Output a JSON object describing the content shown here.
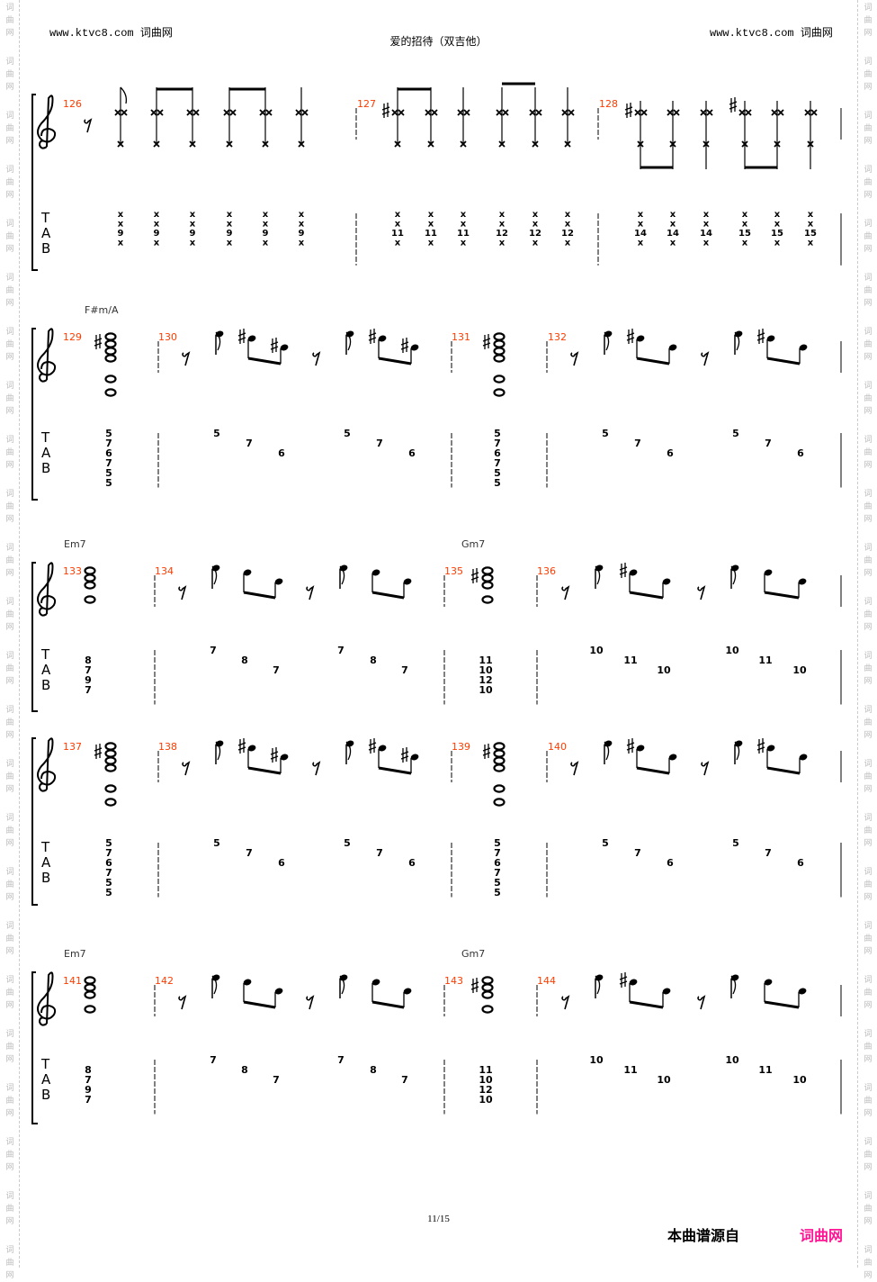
{
  "header": {
    "left": "www.ktvc8.com 词曲网",
    "right": "www.ktvc8.com 词曲网",
    "title": "爱的招待（双吉他）"
  },
  "watermark": "词曲网",
  "footer": {
    "page": "11/15",
    "source_label": "本曲谱源自",
    "source_site": "词曲网"
  },
  "colors": {
    "measure_number": "#ff3c00",
    "brand": "#ff1493",
    "text": "#000000"
  },
  "tab_clef": [
    "T",
    "A",
    "B"
  ],
  "systems": [
    {
      "measures": [
        {
          "number": "126",
          "columns": [
            {
              "string": 1,
              "frets": [
                "x",
                "x",
                "9",
                "x"
              ]
            },
            {
              "string": 1,
              "frets": [
                "x",
                "x",
                "9",
                "x"
              ]
            },
            {
              "string": 1,
              "frets": [
                "x",
                "x",
                "9",
                "x"
              ]
            },
            {
              "string": 1,
              "frets": [
                "x",
                "x",
                "9",
                "x"
              ]
            },
            {
              "string": 1,
              "frets": [
                "x",
                "x",
                "9",
                "x"
              ]
            },
            {
              "string": 1,
              "frets": [
                "x",
                "x",
                "9",
                "x"
              ]
            }
          ]
        },
        {
          "number": "127",
          "columns": [
            {
              "string": 1,
              "frets": [
                "x",
                "x",
                "11",
                "x"
              ]
            },
            {
              "string": 1,
              "frets": [
                "x",
                "x",
                "11",
                "x"
              ]
            },
            {
              "string": 1,
              "frets": [
                "x",
                "x",
                "11",
                "x"
              ]
            },
            {
              "string": 1,
              "frets": [
                "x",
                "x",
                "12",
                "x"
              ]
            },
            {
              "string": 1,
              "frets": [
                "x",
                "x",
                "12",
                "x"
              ]
            },
            {
              "string": 1,
              "frets": [
                "x",
                "x",
                "12",
                "x"
              ]
            }
          ]
        },
        {
          "number": "128",
          "columns": [
            {
              "string": 1,
              "frets": [
                "x",
                "x",
                "14",
                "x"
              ]
            },
            {
              "string": 1,
              "frets": [
                "x",
                "x",
                "14",
                "x"
              ]
            },
            {
              "string": 1,
              "frets": [
                "x",
                "x",
                "14",
                "x"
              ]
            },
            {
              "string": 1,
              "frets": [
                "x",
                "x",
                "15",
                "x"
              ]
            },
            {
              "string": 1,
              "frets": [
                "x",
                "x",
                "15",
                "x"
              ]
            },
            {
              "string": 1,
              "frets": [
                "x",
                "x",
                "15",
                "x"
              ]
            }
          ]
        }
      ]
    },
    {
      "measures": [
        {
          "number": "129",
          "chord": "F#m/A",
          "columns": [
            {
              "string": 1,
              "frets": [
                "5",
                "7",
                "6",
                "7",
                "5",
                "5"
              ]
            }
          ]
        },
        {
          "number": "130",
          "columns": [
            {
              "string": 1,
              "frets": [
                "5"
              ]
            },
            {
              "string": 2,
              "frets": [
                "7"
              ]
            },
            {
              "string": 3,
              "frets": [
                "6"
              ]
            },
            {
              "string": 1,
              "frets": [
                "5"
              ]
            },
            {
              "string": 2,
              "frets": [
                "7"
              ]
            },
            {
              "string": 3,
              "frets": [
                "6"
              ]
            }
          ]
        },
        {
          "number": "131",
          "columns": [
            {
              "string": 1,
              "frets": [
                "5",
                "7",
                "6",
                "7",
                "5",
                "5"
              ]
            }
          ]
        },
        {
          "number": "132",
          "columns": [
            {
              "string": 1,
              "frets": [
                "5"
              ]
            },
            {
              "string": 2,
              "frets": [
                "7"
              ]
            },
            {
              "string": 3,
              "frets": [
                "6"
              ]
            },
            {
              "string": 1,
              "frets": [
                "5"
              ]
            },
            {
              "string": 2,
              "frets": [
                "7"
              ]
            },
            {
              "string": 3,
              "frets": [
                "6"
              ]
            }
          ]
        }
      ]
    },
    {
      "measures": [
        {
          "number": "133",
          "chord": "Em7",
          "columns": [
            {
              "string": 2,
              "frets": [
                "8",
                "7",
                "9",
                "7"
              ]
            }
          ]
        },
        {
          "number": "134",
          "columns": [
            {
              "string": 1,
              "frets": [
                "7"
              ]
            },
            {
              "string": 2,
              "frets": [
                "8"
              ]
            },
            {
              "string": 3,
              "frets": [
                "7"
              ]
            },
            {
              "string": 1,
              "frets": [
                "7"
              ]
            },
            {
              "string": 2,
              "frets": [
                "8"
              ]
            },
            {
              "string": 3,
              "frets": [
                "7"
              ]
            }
          ]
        },
        {
          "number": "135",
          "chord": "Gm7",
          "columns": [
            {
              "string": 2,
              "frets": [
                "11",
                "10",
                "12",
                "10"
              ]
            }
          ]
        },
        {
          "number": "136",
          "columns": [
            {
              "string": 1,
              "frets": [
                "10"
              ]
            },
            {
              "string": 2,
              "frets": [
                "11"
              ]
            },
            {
              "string": 3,
              "frets": [
                "10"
              ]
            },
            {
              "string": 1,
              "frets": [
                "10"
              ]
            },
            {
              "string": 2,
              "frets": [
                "11"
              ]
            },
            {
              "string": 3,
              "frets": [
                "10"
              ]
            }
          ]
        }
      ]
    },
    {
      "measures": [
        {
          "number": "137",
          "columns": [
            {
              "string": 1,
              "frets": [
                "5",
                "7",
                "6",
                "7",
                "5",
                "5"
              ]
            }
          ]
        },
        {
          "number": "138",
          "columns": [
            {
              "string": 1,
              "frets": [
                "5"
              ]
            },
            {
              "string": 2,
              "frets": [
                "7"
              ]
            },
            {
              "string": 3,
              "frets": [
                "6"
              ]
            },
            {
              "string": 1,
              "frets": [
                "5"
              ]
            },
            {
              "string": 2,
              "frets": [
                "7"
              ]
            },
            {
              "string": 3,
              "frets": [
                "6"
              ]
            }
          ]
        },
        {
          "number": "139",
          "columns": [
            {
              "string": 1,
              "frets": [
                "5",
                "7",
                "6",
                "7",
                "5",
                "5"
              ]
            }
          ]
        },
        {
          "number": "140",
          "columns": [
            {
              "string": 1,
              "frets": [
                "5"
              ]
            },
            {
              "string": 2,
              "frets": [
                "7"
              ]
            },
            {
              "string": 3,
              "frets": [
                "6"
              ]
            },
            {
              "string": 1,
              "frets": [
                "5"
              ]
            },
            {
              "string": 2,
              "frets": [
                "7"
              ]
            },
            {
              "string": 3,
              "frets": [
                "6"
              ]
            }
          ]
        }
      ]
    },
    {
      "measures": [
        {
          "number": "141",
          "chord": "Em7",
          "columns": [
            {
              "string": 2,
              "frets": [
                "8",
                "7",
                "9",
                "7"
              ]
            }
          ]
        },
        {
          "number": "142",
          "columns": [
            {
              "string": 1,
              "frets": [
                "7"
              ]
            },
            {
              "string": 2,
              "frets": [
                "8"
              ]
            },
            {
              "string": 3,
              "frets": [
                "7"
              ]
            },
            {
              "string": 1,
              "frets": [
                "7"
              ]
            },
            {
              "string": 2,
              "frets": [
                "8"
              ]
            },
            {
              "string": 3,
              "frets": [
                "7"
              ]
            }
          ]
        },
        {
          "number": "143",
          "chord": "Gm7",
          "columns": [
            {
              "string": 2,
              "frets": [
                "11",
                "10",
                "12",
                "10"
              ]
            }
          ]
        },
        {
          "number": "144",
          "columns": [
            {
              "string": 1,
              "frets": [
                "10"
              ]
            },
            {
              "string": 2,
              "frets": [
                "11"
              ]
            },
            {
              "string": 3,
              "frets": [
                "10"
              ]
            },
            {
              "string": 1,
              "frets": [
                "10"
              ]
            },
            {
              "string": 2,
              "frets": [
                "11"
              ]
            },
            {
              "string": 3,
              "frets": [
                "10"
              ]
            }
          ]
        }
      ]
    }
  ]
}
